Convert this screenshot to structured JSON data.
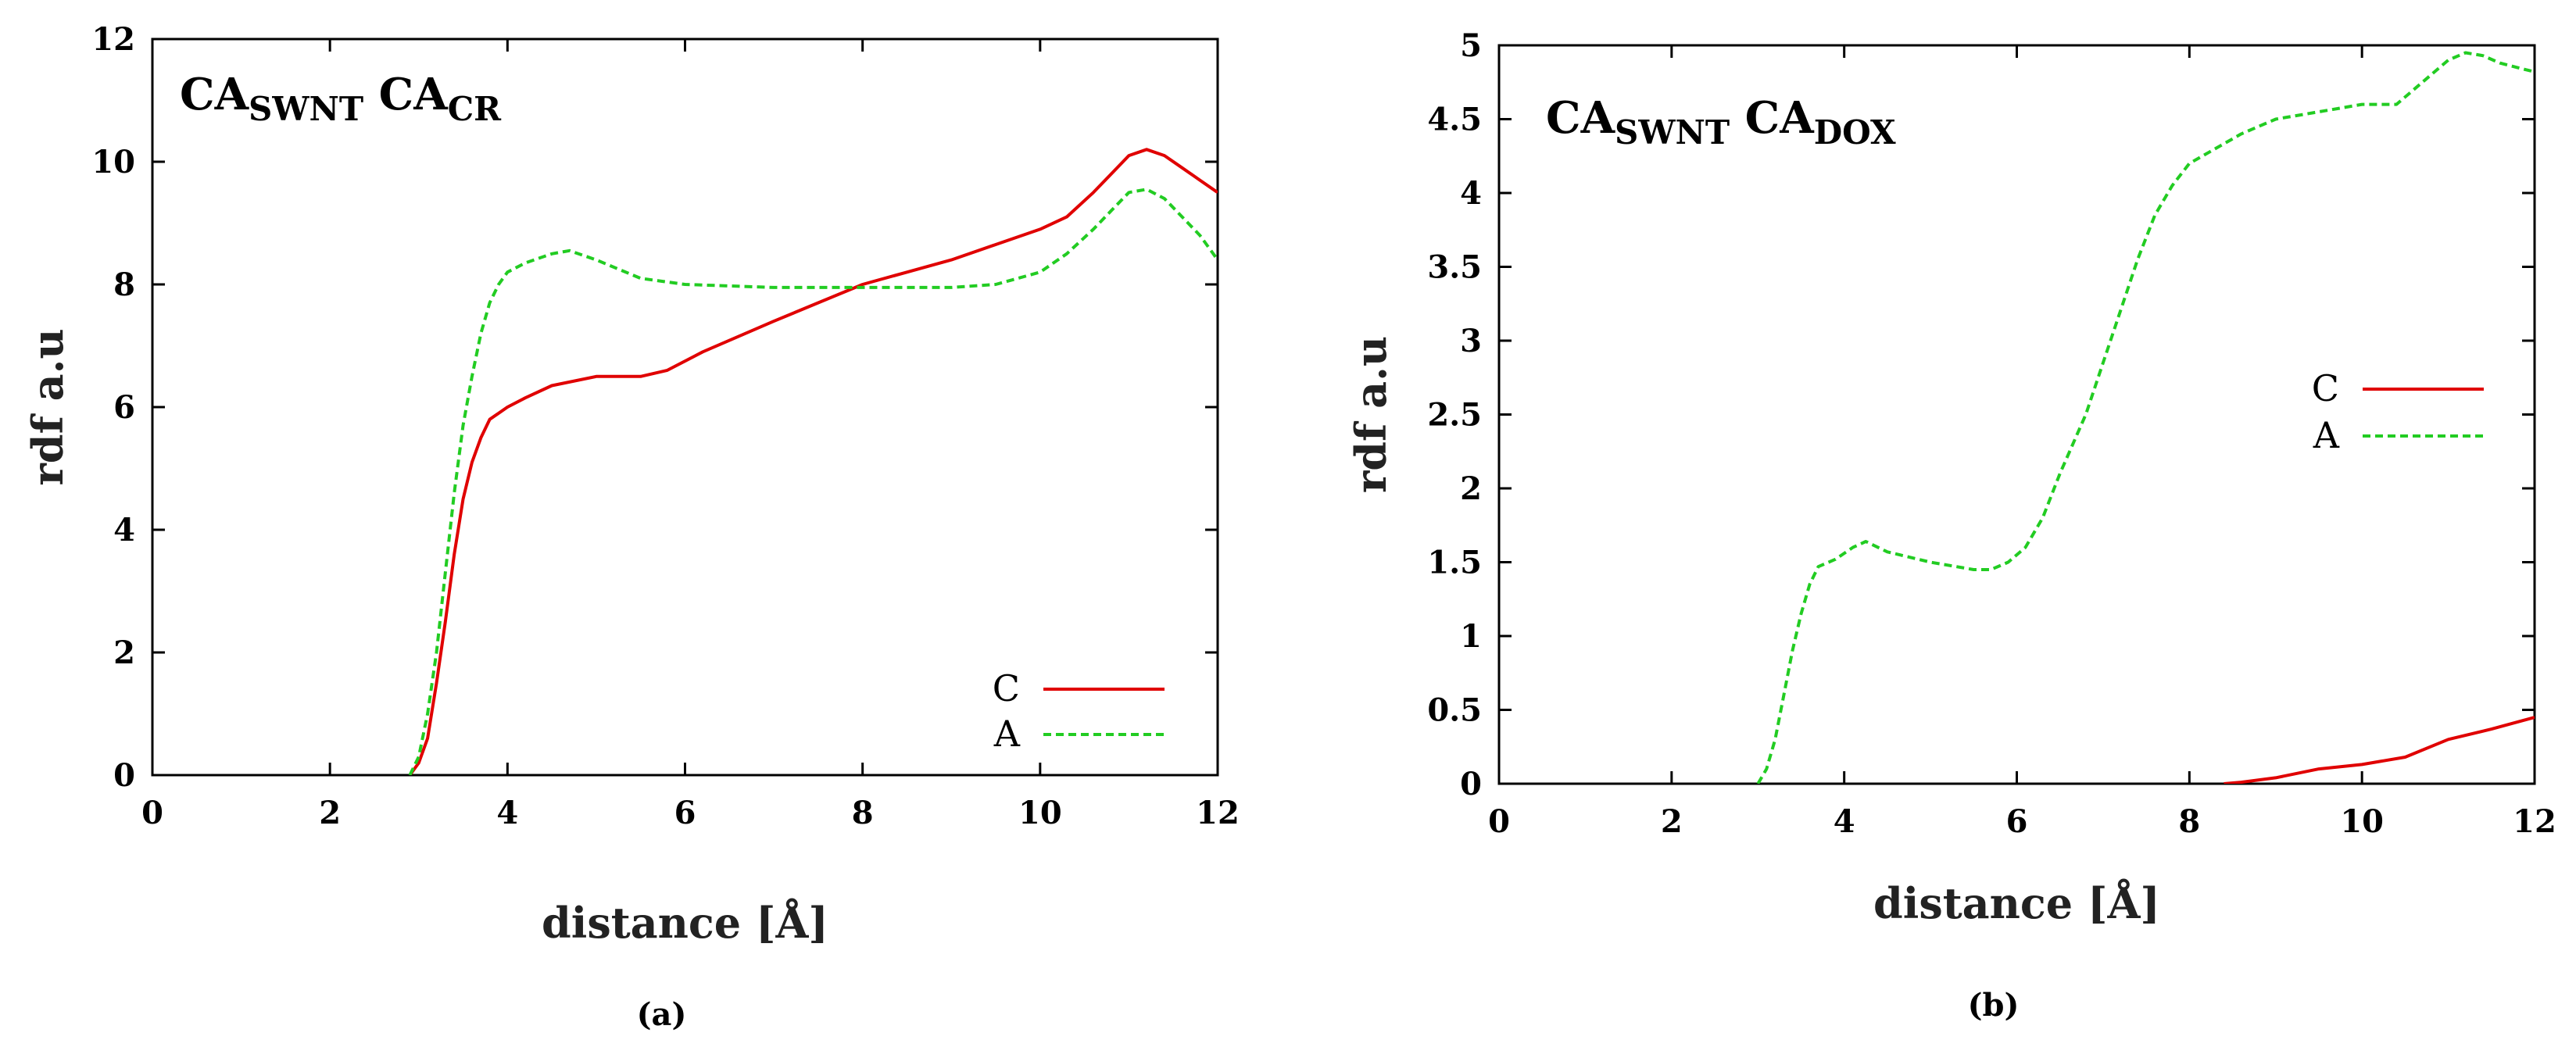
{
  "chart_data": [
    {
      "type": "line",
      "panel": "(a)",
      "title": {
        "main1": "CA",
        "sub1": "SWNT",
        "main2": "CA",
        "sub2": "CR"
      },
      "xlabel": "distance [Å]",
      "ylabel": "rdf a.u",
      "xlim": [
        0,
        12
      ],
      "ylim": [
        0,
        12
      ],
      "xticks": [
        0,
        2,
        4,
        6,
        8,
        10,
        12
      ],
      "xtick_labels": [
        "0",
        "2",
        "4",
        "6",
        "8",
        "10",
        "12"
      ],
      "yticks": [
        0,
        2,
        4,
        6,
        8,
        10,
        12
      ],
      "ytick_labels": [
        "0",
        "2",
        "4",
        "6",
        "8",
        "10",
        "12"
      ],
      "legend_position": "bottom-right",
      "series": [
        {
          "name": "C",
          "color": "#e00000",
          "style": "solid",
          "x": [
            2.9,
            3.0,
            3.1,
            3.2,
            3.3,
            3.4,
            3.5,
            3.6,
            3.7,
            3.8,
            4.0,
            4.2,
            4.5,
            5.0,
            5.5,
            5.8,
            6.2,
            7.0,
            7.5,
            8.0,
            8.5,
            9.0,
            9.5,
            10.0,
            10.3,
            10.6,
            10.8,
            11.0,
            11.2,
            11.4,
            11.6,
            11.8,
            12.0
          ],
          "y": [
            0.0,
            0.2,
            0.6,
            1.5,
            2.5,
            3.6,
            4.5,
            5.1,
            5.5,
            5.8,
            6.0,
            6.15,
            6.35,
            6.5,
            6.5,
            6.6,
            6.9,
            7.4,
            7.7,
            8.0,
            8.2,
            8.4,
            8.65,
            8.9,
            9.1,
            9.5,
            9.8,
            10.1,
            10.2,
            10.1,
            9.9,
            9.7,
            9.5
          ]
        },
        {
          "name": "A",
          "color": "#22cc22",
          "style": "dashed",
          "x": [
            2.9,
            3.0,
            3.1,
            3.2,
            3.3,
            3.4,
            3.5,
            3.6,
            3.7,
            3.8,
            3.9,
            4.0,
            4.2,
            4.5,
            4.7,
            5.0,
            5.5,
            6.0,
            7.0,
            8.0,
            9.0,
            9.5,
            10.0,
            10.3,
            10.6,
            10.8,
            11.0,
            11.2,
            11.4,
            11.6,
            11.8,
            12.0
          ],
          "y": [
            0.0,
            0.3,
            1.0,
            2.0,
            3.3,
            4.6,
            5.7,
            6.5,
            7.2,
            7.7,
            8.0,
            8.2,
            8.35,
            8.5,
            8.55,
            8.4,
            8.1,
            8.0,
            7.95,
            7.95,
            7.95,
            8.0,
            8.2,
            8.5,
            8.9,
            9.2,
            9.5,
            9.55,
            9.4,
            9.1,
            8.8,
            8.4
          ]
        }
      ],
      "caption": "(a)"
    },
    {
      "type": "line",
      "panel": "(b)",
      "title": {
        "main1": "CA",
        "sub1": "SWNT",
        "main2": "CA",
        "sub2": "DOX"
      },
      "xlabel": "distance [Å]",
      "ylabel": "rdf a.u",
      "xlim": [
        0,
        12
      ],
      "ylim": [
        0,
        5
      ],
      "xticks": [
        0,
        2,
        4,
        6,
        8,
        10,
        12
      ],
      "xtick_labels": [
        "0",
        "2",
        "4",
        "6",
        "8",
        "10",
        "12"
      ],
      "yticks": [
        0,
        0.5,
        1,
        1.5,
        2,
        2.5,
        3,
        3.5,
        4,
        4.5,
        5
      ],
      "ytick_labels": [
        "0",
        "0.5",
        "1",
        "1.5",
        "2",
        "2.5",
        "3",
        "3.5",
        "4",
        "4.5",
        "5"
      ],
      "legend_position": "right",
      "series": [
        {
          "name": "C",
          "color": "#e00000",
          "style": "solid",
          "x": [
            8.4,
            8.6,
            9.0,
            9.5,
            10.0,
            10.5,
            11.0,
            11.5,
            12.0
          ],
          "y": [
            0.0,
            0.01,
            0.04,
            0.1,
            0.13,
            0.18,
            0.3,
            0.37,
            0.45
          ]
        },
        {
          "name": "A",
          "color": "#22cc22",
          "style": "dashed",
          "x": [
            3.0,
            3.1,
            3.2,
            3.3,
            3.4,
            3.5,
            3.6,
            3.7,
            3.9,
            4.1,
            4.25,
            4.5,
            5.0,
            5.5,
            5.7,
            5.9,
            6.1,
            6.3,
            6.5,
            6.8,
            7.0,
            7.2,
            7.4,
            7.6,
            7.8,
            8.0,
            8.3,
            8.6,
            8.8,
            9.0,
            9.5,
            10.0,
            10.4,
            10.6,
            10.8,
            11.0,
            11.2,
            11.4,
            11.6,
            11.8,
            12.0
          ],
          "y": [
            0.0,
            0.1,
            0.3,
            0.6,
            0.9,
            1.15,
            1.35,
            1.47,
            1.52,
            1.6,
            1.64,
            1.57,
            1.5,
            1.45,
            1.45,
            1.5,
            1.6,
            1.8,
            2.1,
            2.5,
            2.85,
            3.2,
            3.55,
            3.85,
            4.05,
            4.2,
            4.3,
            4.4,
            4.45,
            4.5,
            4.55,
            4.6,
            4.6,
            4.7,
            4.8,
            4.9,
            4.95,
            4.93,
            4.88,
            4.85,
            4.82
          ]
        }
      ],
      "caption": "(b)"
    }
  ]
}
